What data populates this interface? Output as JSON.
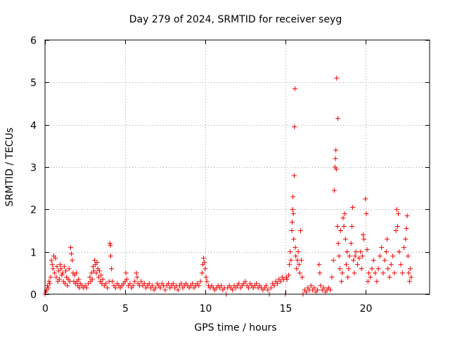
{
  "chart_data": {
    "type": "scatter",
    "title": "Day 279 of 2024, SRMTID for receiver seyg",
    "xlabel": "GPS time / hours",
    "ylabel": "SRMTID / TECUs",
    "xlim": [
      0,
      24
    ],
    "ylim": [
      0,
      6
    ],
    "xticks": [
      0,
      5,
      10,
      15,
      20
    ],
    "xtick_labels": [
      "0",
      "5",
      "10",
      "15",
      "20"
    ],
    "yticks": [
      0,
      1,
      2,
      3,
      4,
      5,
      6
    ],
    "ytick_labels": [
      "0",
      "1",
      "2",
      "3",
      "4",
      "5",
      "6"
    ],
    "grid": true,
    "series": [
      {
        "name": "SRMTID",
        "marker": "plus",
        "color": "#ee0000",
        "points": [
          [
            0.0,
            0.0
          ],
          [
            0.05,
            0.05
          ],
          [
            0.1,
            0.1
          ],
          [
            0.15,
            0.2
          ],
          [
            0.2,
            0.15
          ],
          [
            0.25,
            0.3
          ],
          [
            0.3,
            0.25
          ],
          [
            0.35,
            0.4
          ],
          [
            0.4,
            0.8
          ],
          [
            0.45,
            0.7
          ],
          [
            0.5,
            0.6
          ],
          [
            0.55,
            0.9
          ],
          [
            0.6,
            0.5
          ],
          [
            0.65,
            0.85
          ],
          [
            0.7,
            0.4
          ],
          [
            0.75,
            0.65
          ],
          [
            0.8,
            0.3
          ],
          [
            0.85,
            0.55
          ],
          [
            0.9,
            0.35
          ],
          [
            0.95,
            0.7
          ],
          [
            1.0,
            0.6
          ],
          [
            1.05,
            0.45
          ],
          [
            1.1,
            0.5
          ],
          [
            1.15,
            0.3
          ],
          [
            1.2,
            0.65
          ],
          [
            1.25,
            0.25
          ],
          [
            1.3,
            0.55
          ],
          [
            1.35,
            0.4
          ],
          [
            1.4,
            0.2
          ],
          [
            1.45,
            0.35
          ],
          [
            1.5,
            0.6
          ],
          [
            1.55,
            0.3
          ],
          [
            1.6,
            1.1
          ],
          [
            1.65,
            0.95
          ],
          [
            1.7,
            0.8
          ],
          [
            1.75,
            0.5
          ],
          [
            1.8,
            0.3
          ],
          [
            1.85,
            0.45
          ],
          [
            1.9,
            0.25
          ],
          [
            1.95,
            0.5
          ],
          [
            2.0,
            0.3
          ],
          [
            2.05,
            0.2
          ],
          [
            2.1,
            0.35
          ],
          [
            2.15,
            0.15
          ],
          [
            2.2,
            0.25
          ],
          [
            2.3,
            0.2
          ],
          [
            2.4,
            0.15
          ],
          [
            2.5,
            0.2
          ],
          [
            2.6,
            0.15
          ],
          [
            2.7,
            0.25
          ],
          [
            2.8,
            0.4
          ],
          [
            2.85,
            0.3
          ],
          [
            2.9,
            0.5
          ],
          [
            2.95,
            0.35
          ],
          [
            3.0,
            0.65
          ],
          [
            3.05,
            0.55
          ],
          [
            3.1,
            0.8
          ],
          [
            3.15,
            0.7
          ],
          [
            3.2,
            0.5
          ],
          [
            3.25,
            0.75
          ],
          [
            3.3,
            0.6
          ],
          [
            3.35,
            0.4
          ],
          [
            3.4,
            0.55
          ],
          [
            3.45,
            0.3
          ],
          [
            3.5,
            0.45
          ],
          [
            3.55,
            0.25
          ],
          [
            3.6,
            0.35
          ],
          [
            3.7,
            0.2
          ],
          [
            3.8,
            0.25
          ],
          [
            3.9,
            0.15
          ],
          [
            4.0,
            0.3
          ],
          [
            4.05,
            1.2
          ],
          [
            4.08,
            1.15
          ],
          [
            4.1,
            0.9
          ],
          [
            4.15,
            0.6
          ],
          [
            4.2,
            0.3
          ],
          [
            4.3,
            0.2
          ],
          [
            4.4,
            0.15
          ],
          [
            4.5,
            0.25
          ],
          [
            4.6,
            0.2
          ],
          [
            4.7,
            0.15
          ],
          [
            4.8,
            0.2
          ],
          [
            4.9,
            0.25
          ],
          [
            5.0,
            0.3
          ],
          [
            5.05,
            0.5
          ],
          [
            5.1,
            0.35
          ],
          [
            5.2,
            0.2
          ],
          [
            5.3,
            0.25
          ],
          [
            5.4,
            0.15
          ],
          [
            5.5,
            0.2
          ],
          [
            5.6,
            0.3
          ],
          [
            5.7,
            0.5
          ],
          [
            5.75,
            0.4
          ],
          [
            5.8,
            0.25
          ],
          [
            5.9,
            0.2
          ],
          [
            6.0,
            0.3
          ],
          [
            6.1,
            0.2
          ],
          [
            6.2,
            0.25
          ],
          [
            6.3,
            0.15
          ],
          [
            6.4,
            0.2
          ],
          [
            6.5,
            0.25
          ],
          [
            6.6,
            0.15
          ],
          [
            6.7,
            0.2
          ],
          [
            6.8,
            0.1
          ],
          [
            6.9,
            0.15
          ],
          [
            7.0,
            0.25
          ],
          [
            7.1,
            0.2
          ],
          [
            7.2,
            0.15
          ],
          [
            7.3,
            0.25
          ],
          [
            7.4,
            0.2
          ],
          [
            7.5,
            0.1
          ],
          [
            7.6,
            0.2
          ],
          [
            7.7,
            0.25
          ],
          [
            7.8,
            0.15
          ],
          [
            7.9,
            0.2
          ],
          [
            8.0,
            0.25
          ],
          [
            8.1,
            0.15
          ],
          [
            8.2,
            0.2
          ],
          [
            8.3,
            0.1
          ],
          [
            8.4,
            0.2
          ],
          [
            8.5,
            0.25
          ],
          [
            8.6,
            0.15
          ],
          [
            8.7,
            0.2
          ],
          [
            8.8,
            0.25
          ],
          [
            8.9,
            0.2
          ],
          [
            9.0,
            0.15
          ],
          [
            9.1,
            0.2
          ],
          [
            9.2,
            0.25
          ],
          [
            9.3,
            0.15
          ],
          [
            9.4,
            0.2
          ],
          [
            9.5,
            0.25
          ],
          [
            9.6,
            0.2
          ],
          [
            9.7,
            0.3
          ],
          [
            9.8,
            0.5
          ],
          [
            9.85,
            0.7
          ],
          [
            9.9,
            0.85
          ],
          [
            9.95,
            0.75
          ],
          [
            10.0,
            0.6
          ],
          [
            10.05,
            0.4
          ],
          [
            10.1,
            0.3
          ],
          [
            10.2,
            0.2
          ],
          [
            10.3,
            0.15
          ],
          [
            10.4,
            0.2
          ],
          [
            10.5,
            0.15
          ],
          [
            10.6,
            0.1
          ],
          [
            10.7,
            0.15
          ],
          [
            10.8,
            0.2
          ],
          [
            10.9,
            0.15
          ],
          [
            11.0,
            0.2
          ],
          [
            11.1,
            0.1
          ],
          [
            11.2,
            0.15
          ],
          [
            11.3,
            0.0
          ],
          [
            11.4,
            0.15
          ],
          [
            11.5,
            0.2
          ],
          [
            11.6,
            0.15
          ],
          [
            11.7,
            0.1
          ],
          [
            11.8,
            0.2
          ],
          [
            11.9,
            0.15
          ],
          [
            12.0,
            0.2
          ],
          [
            12.1,
            0.25
          ],
          [
            12.2,
            0.15
          ],
          [
            12.3,
            0.2
          ],
          [
            12.4,
            0.25
          ],
          [
            12.5,
            0.3
          ],
          [
            12.6,
            0.2
          ],
          [
            12.7,
            0.15
          ],
          [
            12.8,
            0.25
          ],
          [
            12.9,
            0.2
          ],
          [
            13.0,
            0.15
          ],
          [
            13.1,
            0.2
          ],
          [
            13.2,
            0.25
          ],
          [
            13.3,
            0.15
          ],
          [
            13.4,
            0.2
          ],
          [
            13.5,
            0.15
          ],
          [
            13.6,
            0.1
          ],
          [
            13.7,
            0.15
          ],
          [
            13.8,
            0.2
          ],
          [
            13.9,
            0.1
          ],
          [
            14.0,
            0.0
          ],
          [
            14.1,
            0.15
          ],
          [
            14.2,
            0.25
          ],
          [
            14.3,
            0.2
          ],
          [
            14.4,
            0.3
          ],
          [
            14.5,
            0.25
          ],
          [
            14.6,
            0.35
          ],
          [
            14.7,
            0.3
          ],
          [
            14.8,
            0.4
          ],
          [
            14.9,
            0.35
          ],
          [
            15.0,
            0.0
          ],
          [
            15.05,
            0.4
          ],
          [
            15.1,
            0.35
          ],
          [
            15.2,
            0.45
          ],
          [
            15.25,
            0.7
          ],
          [
            15.3,
            1.0
          ],
          [
            15.35,
            0.8
          ],
          [
            15.4,
            1.5
          ],
          [
            15.42,
            1.7
          ],
          [
            15.45,
            2.0
          ],
          [
            15.47,
            2.3
          ],
          [
            15.5,
            1.9
          ],
          [
            15.52,
            1.3
          ],
          [
            15.55,
            2.8
          ],
          [
            15.57,
            3.95
          ],
          [
            15.6,
            4.85
          ],
          [
            15.62,
            1.1
          ],
          [
            15.65,
            0.9
          ],
          [
            15.7,
            0.6
          ],
          [
            15.75,
            0.8
          ],
          [
            15.8,
            1.0
          ],
          [
            15.85,
            0.7
          ],
          [
            15.9,
            0.5
          ],
          [
            15.95,
            1.5
          ],
          [
            16.0,
            0.8
          ],
          [
            16.05,
            0.4
          ],
          [
            16.1,
            0.0
          ],
          [
            16.2,
            0.1
          ],
          [
            16.3,
            0.05
          ],
          [
            16.4,
            0.15
          ],
          [
            16.5,
            0.1
          ],
          [
            16.6,
            0.2
          ],
          [
            16.7,
            0.1
          ],
          [
            16.8,
            0.15
          ],
          [
            16.9,
            0.05
          ],
          [
            17.0,
            0.1
          ],
          [
            17.1,
            0.7
          ],
          [
            17.15,
            0.5
          ],
          [
            17.2,
            0.2
          ],
          [
            17.3,
            0.1
          ],
          [
            17.4,
            0.15
          ],
          [
            17.5,
            0.05
          ],
          [
            17.6,
            0.1
          ],
          [
            17.7,
            0.15
          ],
          [
            17.8,
            0.1
          ],
          [
            17.9,
            0.4
          ],
          [
            18.0,
            0.8
          ],
          [
            18.05,
            2.45
          ],
          [
            18.1,
            3.0
          ],
          [
            18.12,
            3.2
          ],
          [
            18.15,
            3.4
          ],
          [
            18.18,
            2.95
          ],
          [
            18.2,
            5.1
          ],
          [
            18.25,
            1.6
          ],
          [
            18.28,
            4.15
          ],
          [
            18.3,
            1.2
          ],
          [
            18.35,
            0.9
          ],
          [
            18.4,
            0.6
          ],
          [
            18.45,
            1.5
          ],
          [
            18.5,
            0.3
          ],
          [
            18.55,
            0.5
          ],
          [
            18.6,
            1.8
          ],
          [
            18.65,
            1.6
          ],
          [
            18.7,
            1.9
          ],
          [
            18.75,
            1.3
          ],
          [
            18.8,
            0.7
          ],
          [
            18.85,
            1.0
          ],
          [
            18.9,
            0.4
          ],
          [
            18.95,
            0.6
          ],
          [
            19.0,
            0.9
          ],
          [
            19.1,
            1.2
          ],
          [
            19.15,
            1.6
          ],
          [
            19.2,
            2.05
          ],
          [
            19.25,
            0.8
          ],
          [
            19.3,
            0.5
          ],
          [
            19.35,
            0.9
          ],
          [
            19.4,
            1.0
          ],
          [
            19.5,
            0.7
          ],
          [
            19.6,
            0.85
          ],
          [
            19.7,
            1.0
          ],
          [
            19.75,
            0.6
          ],
          [
            19.8,
            0.9
          ],
          [
            19.85,
            1.4
          ],
          [
            19.9,
            1.3
          ],
          [
            20.0,
            2.25
          ],
          [
            20.05,
            1.9
          ],
          [
            20.1,
            1.05
          ],
          [
            20.15,
            0.3
          ],
          [
            20.2,
            0.5
          ],
          [
            20.3,
            0.4
          ],
          [
            20.4,
            0.6
          ],
          [
            20.5,
            0.8
          ],
          [
            20.6,
            0.5
          ],
          [
            20.7,
            0.3
          ],
          [
            20.8,
            0.6
          ],
          [
            20.9,
            0.9
          ],
          [
            21.0,
            1.1
          ],
          [
            21.1,
            0.5
          ],
          [
            21.2,
            0.8
          ],
          [
            21.3,
            1.0
          ],
          [
            21.35,
            1.3
          ],
          [
            21.4,
            0.6
          ],
          [
            21.5,
            0.4
          ],
          [
            21.6,
            0.7
          ],
          [
            21.7,
            0.9
          ],
          [
            21.8,
            0.5
          ],
          [
            21.9,
            1.5
          ],
          [
            21.95,
            2.0
          ],
          [
            22.0,
            1.6
          ],
          [
            22.05,
            1.9
          ],
          [
            22.1,
            1.0
          ],
          [
            22.2,
            0.7
          ],
          [
            22.3,
            0.5
          ],
          [
            22.4,
            1.1
          ],
          [
            22.5,
            1.3
          ],
          [
            22.55,
            1.55
          ],
          [
            22.6,
            1.85
          ],
          [
            22.65,
            0.9
          ],
          [
            22.7,
            0.5
          ],
          [
            22.75,
            0.3
          ],
          [
            22.8,
            0.6
          ],
          [
            22.85,
            0.4
          ]
        ]
      }
    ]
  }
}
